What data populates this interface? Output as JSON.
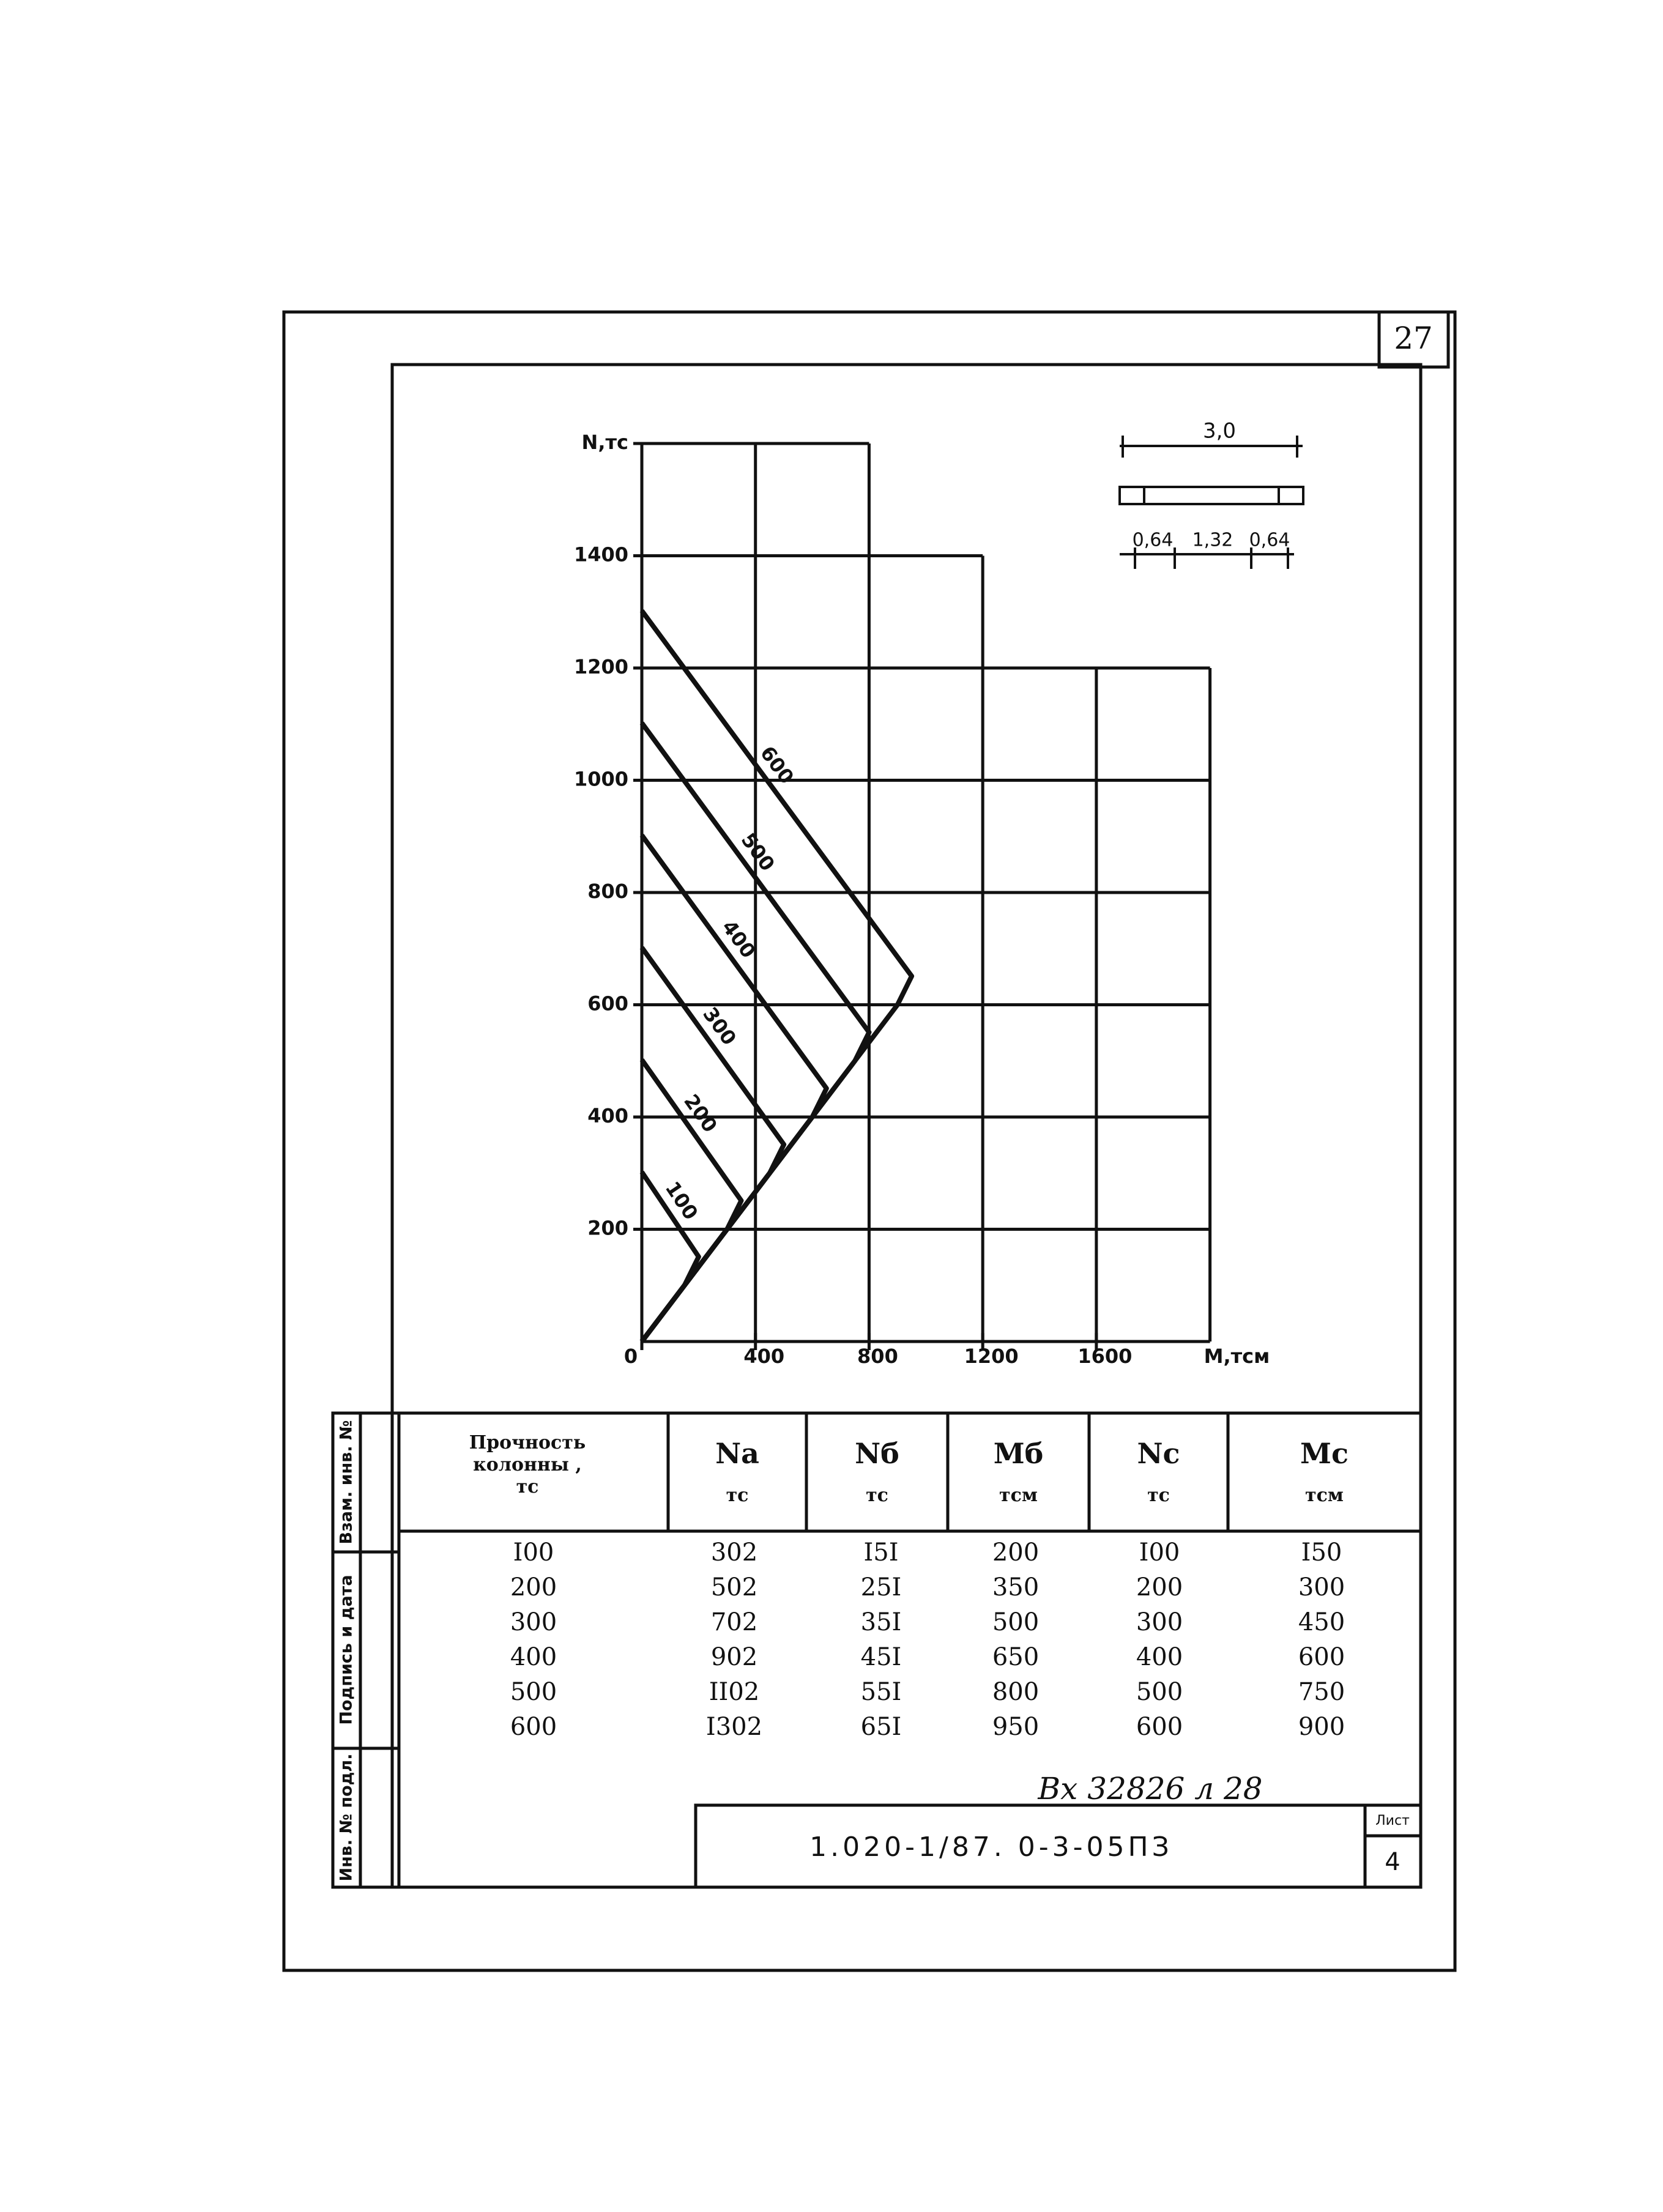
{
  "page_number": "27",
  "chart_data": {
    "type": "line",
    "y_label": "N,тс",
    "x_label": "M,тсм",
    "xlim": [
      0,
      2000
    ],
    "ylim": [
      0,
      1600
    ],
    "xticks": [
      0,
      400,
      800,
      1200,
      1600
    ],
    "yticks": [
      200,
      400,
      600,
      800,
      1000,
      1200,
      1400
    ],
    "color": "#111111",
    "series": [
      {
        "name": "100",
        "x": [
          0,
          200,
          150,
          0
        ],
        "values": [
          302,
          151,
          100,
          0
        ]
      },
      {
        "name": "200",
        "x": [
          0,
          350,
          300,
          0
        ],
        "values": [
          502,
          251,
          200,
          0
        ]
      },
      {
        "name": "300",
        "x": [
          0,
          500,
          450,
          0
        ],
        "values": [
          702,
          351,
          300,
          0
        ]
      },
      {
        "name": "400",
        "x": [
          0,
          650,
          600,
          0
        ],
        "values": [
          902,
          451,
          400,
          0
        ]
      },
      {
        "name": "500",
        "x": [
          0,
          800,
          750,
          0
        ],
        "values": [
          1102,
          551,
          500,
          0
        ]
      },
      {
        "name": "600",
        "x": [
          0,
          950,
          900,
          0
        ],
        "values": [
          1302,
          651,
          600,
          0
        ]
      }
    ]
  },
  "section": {
    "width": "3,0",
    "parts": [
      "0,64",
      "1,32",
      "0,64"
    ]
  },
  "table": {
    "header": [
      [
        "Прочность",
        "колонны ,",
        "тс"
      ],
      [
        "Nа",
        "тс"
      ],
      [
        "Nб",
        "тс"
      ],
      [
        "Mб",
        "тсм"
      ],
      [
        "Nс",
        "тс"
      ],
      [
        "Mс",
        "тсм"
      ]
    ],
    "rows": [
      [
        "I00",
        "302",
        "I5I",
        "200",
        "I00",
        "I50"
      ],
      [
        "200",
        "502",
        "25I",
        "350",
        "200",
        "300"
      ],
      [
        "300",
        "702",
        "35I",
        "500",
        "300",
        "450"
      ],
      [
        "400",
        "902",
        "45I",
        "650",
        "400",
        "600"
      ],
      [
        "500",
        "II02",
        "55I",
        "800",
        "500",
        "750"
      ],
      [
        "600",
        "I302",
        "65I",
        "950",
        "600",
        "900"
      ]
    ]
  },
  "stamps": [
    "Инв. № подл.",
    "Подпись и дата",
    "Взам. инв. №"
  ],
  "handwritten": "Вх 32826 л 28",
  "title_block": {
    "code": "1.020-1/87. 0-3-05ПЗ",
    "sheet_label": "Лист",
    "sheet": "4"
  }
}
